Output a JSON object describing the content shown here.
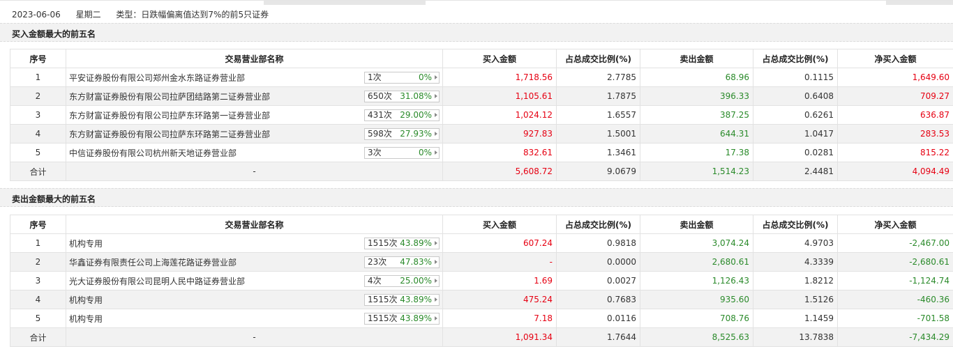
{
  "header": {
    "date": "2023-06-06",
    "weekday": "星期二",
    "type": "类型：日跌幅偏离值达到7%的前5只证券"
  },
  "buy_section": {
    "title": "买入金额最大的前五名",
    "columns": [
      "序号",
      "交易营业部名称",
      "买入金额",
      "占总成交比例(%)",
      "卖出金额",
      "占总成交比例(%)",
      "净买入金额"
    ],
    "rows": [
      {
        "no": "1",
        "name": "平安证券股份有限公司郑州金水东路证券营业部",
        "count": "1次",
        "pct": "0%",
        "buy": "1,718.56",
        "buy_ratio": "2.7785",
        "sell": "68.96",
        "sell_ratio": "0.1115",
        "net": "1,649.60"
      },
      {
        "no": "2",
        "name": "东方财富证券股份有限公司拉萨团结路第二证券营业部",
        "count": "650次",
        "pct": "31.08%",
        "buy": "1,105.61",
        "buy_ratio": "1.7875",
        "sell": "396.33",
        "sell_ratio": "0.6408",
        "net": "709.27"
      },
      {
        "no": "3",
        "name": "东方财富证券股份有限公司拉萨东环路第一证券营业部",
        "count": "431次",
        "pct": "29.00%",
        "buy": "1,024.12",
        "buy_ratio": "1.6557",
        "sell": "387.25",
        "sell_ratio": "0.6261",
        "net": "636.87"
      },
      {
        "no": "4",
        "name": "东方财富证券股份有限公司拉萨东环路第二证券营业部",
        "count": "598次",
        "pct": "27.93%",
        "buy": "927.83",
        "buy_ratio": "1.5001",
        "sell": "644.31",
        "sell_ratio": "1.0417",
        "net": "283.53"
      },
      {
        "no": "5",
        "name": "中信证券股份有限公司杭州新天地证券营业部",
        "count": "3次",
        "pct": "0%",
        "buy": "832.61",
        "buy_ratio": "1.3461",
        "sell": "17.38",
        "sell_ratio": "0.0281",
        "net": "815.22"
      }
    ],
    "total": {
      "label": "合计",
      "name": "-",
      "buy": "5,608.72",
      "buy_ratio": "9.0679",
      "sell": "1,514.23",
      "sell_ratio": "2.4481",
      "net": "4,094.49"
    }
  },
  "sell_section": {
    "title": "卖出金额最大的前五名",
    "columns": [
      "序号",
      "交易营业部名称",
      "买入金额",
      "占总成交比例(%)",
      "卖出金额",
      "占总成交比例(%)",
      "净买入金额"
    ],
    "rows": [
      {
        "no": "1",
        "name": "机构专用",
        "count": "1515次",
        "pct": "43.89%",
        "buy": "607.24",
        "buy_ratio": "0.9818",
        "sell": "3,074.24",
        "sell_ratio": "4.9703",
        "net": "-2,467.00"
      },
      {
        "no": "2",
        "name": "华鑫证券有限责任公司上海莲花路证券营业部",
        "count": "23次",
        "pct": "47.83%",
        "buy": "-",
        "buy_ratio": "0.0000",
        "sell": "2,680.61",
        "sell_ratio": "4.3339",
        "net": "-2,680.61"
      },
      {
        "no": "3",
        "name": "光大证券股份有限公司昆明人民中路证券营业部",
        "count": "4次",
        "pct": "25.00%",
        "buy": "1.69",
        "buy_ratio": "0.0027",
        "sell": "1,126.43",
        "sell_ratio": "1.8212",
        "net": "-1,124.74"
      },
      {
        "no": "4",
        "name": "机构专用",
        "count": "1515次",
        "pct": "43.89%",
        "buy": "475.24",
        "buy_ratio": "0.7683",
        "sell": "935.60",
        "sell_ratio": "1.5126",
        "net": "-460.36"
      },
      {
        "no": "5",
        "name": "机构专用",
        "count": "1515次",
        "pct": "43.89%",
        "buy": "7.18",
        "buy_ratio": "0.0116",
        "sell": "708.76",
        "sell_ratio": "1.1459",
        "net": "-701.58"
      }
    ],
    "total": {
      "label": "合计",
      "name": "-",
      "buy": "1,091.34",
      "buy_ratio": "1.7644",
      "sell": "8,525.63",
      "sell_ratio": "13.7838",
      "net": "-7,434.29"
    }
  },
  "colors": {
    "buy": "#e60012",
    "sell": "#2a8a2a",
    "row_alt": "#f2f2f2"
  }
}
